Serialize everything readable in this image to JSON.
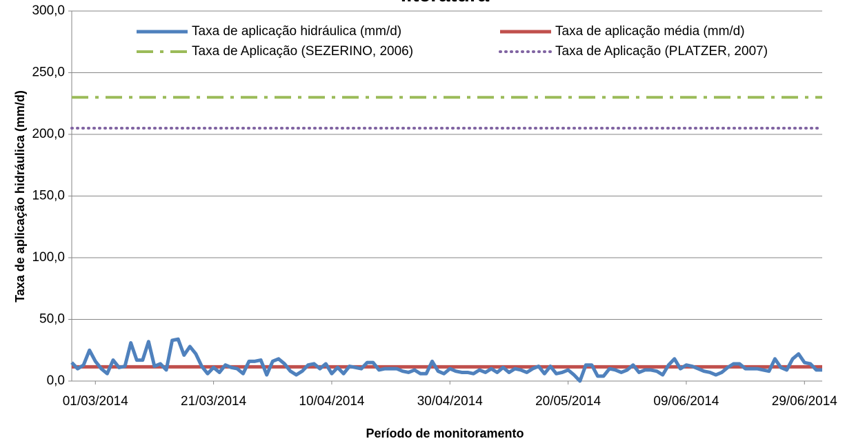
{
  "chart_data": {
    "type": "line",
    "title": "literatura",
    "xlabel": "Período de monitoramento",
    "ylabel": "Taxa de aplicação hidráulica (mm/d)",
    "xlim": [
      "25/02/2014",
      "02/07/2014"
    ],
    "xticks": [
      "01/03/2014",
      "21/03/2014",
      "10/04/2014",
      "30/04/2014",
      "20/05/2014",
      "09/06/2014",
      "29/06/2014"
    ],
    "ylim": [
      0,
      300
    ],
    "yticks": [
      {
        "value": 0,
        "label": "0,0"
      },
      {
        "value": 50,
        "label": "50,0"
      },
      {
        "value": 100,
        "label": "100,0"
      },
      {
        "value": 150,
        "label": "150,0"
      },
      {
        "value": 200,
        "label": "200,0"
      },
      {
        "value": 250,
        "label": "250,0"
      },
      {
        "value": 300,
        "label": "300,0"
      }
    ],
    "grid": true,
    "legend": "top",
    "series": [
      {
        "name": "Taxa de aplicação hidráulica (mm/d)",
        "color": "#4f81bd",
        "style": "solid",
        "x": [
          "25/02/2014",
          "26/02/2014",
          "27/02/2014",
          "28/02/2014",
          "01/03/2014",
          "02/03/2014",
          "03/03/2014",
          "04/03/2014",
          "05/03/2014",
          "06/03/2014",
          "07/03/2014",
          "08/03/2014",
          "09/03/2014",
          "10/03/2014",
          "11/03/2014",
          "12/03/2014",
          "13/03/2014",
          "14/03/2014",
          "15/03/2014",
          "16/03/2014",
          "17/03/2014",
          "18/03/2014",
          "19/03/2014",
          "20/03/2014",
          "21/03/2014",
          "22/03/2014",
          "23/03/2014",
          "24/03/2014",
          "25/03/2014",
          "26/03/2014",
          "27/03/2014",
          "28/03/2014",
          "29/03/2014",
          "30/03/2014",
          "31/03/2014",
          "01/04/2014",
          "02/04/2014",
          "03/04/2014",
          "04/04/2014",
          "05/04/2014",
          "06/04/2014",
          "07/04/2014",
          "08/04/2014",
          "09/04/2014",
          "10/04/2014",
          "11/04/2014",
          "12/04/2014",
          "13/04/2014",
          "14/04/2014",
          "15/04/2014",
          "16/04/2014",
          "17/04/2014",
          "18/04/2014",
          "19/04/2014",
          "20/04/2014",
          "21/04/2014",
          "22/04/2014",
          "23/04/2014",
          "24/04/2014",
          "25/04/2014",
          "26/04/2014",
          "27/04/2014",
          "28/04/2014",
          "29/04/2014",
          "30/04/2014",
          "01/05/2014",
          "02/05/2014",
          "03/05/2014",
          "04/05/2014",
          "05/05/2014",
          "06/05/2014",
          "07/05/2014",
          "08/05/2014",
          "09/05/2014",
          "10/05/2014",
          "11/05/2014",
          "12/05/2014",
          "13/05/2014",
          "14/05/2014",
          "15/05/2014",
          "16/05/2014",
          "17/05/2014",
          "18/05/2014",
          "19/05/2014",
          "20/05/2014",
          "21/05/2014",
          "22/05/2014",
          "23/05/2014",
          "24/05/2014",
          "25/05/2014",
          "26/05/2014",
          "27/05/2014",
          "28/05/2014",
          "29/05/2014",
          "30/05/2014",
          "31/05/2014",
          "01/06/2014",
          "02/06/2014",
          "03/06/2014",
          "04/06/2014",
          "05/06/2014",
          "06/06/2014",
          "07/06/2014",
          "08/06/2014",
          "09/06/2014",
          "10/06/2014",
          "11/06/2014",
          "12/06/2014",
          "13/06/2014",
          "14/06/2014",
          "15/06/2014",
          "16/06/2014",
          "17/06/2014",
          "18/06/2014",
          "19/06/2014",
          "20/06/2014",
          "21/06/2014",
          "22/06/2014",
          "23/06/2014",
          "24/06/2014",
          "25/06/2014",
          "26/06/2014",
          "27/06/2014",
          "28/06/2014",
          "29/06/2014",
          "30/06/2014",
          "01/07/2014",
          "02/07/2014"
        ],
        "values": [
          15,
          10,
          13,
          25,
          16,
          10,
          6,
          17,
          11,
          12,
          31,
          17,
          17,
          32,
          12,
          14,
          9,
          33,
          34,
          21,
          28,
          22,
          12,
          6,
          11,
          7,
          13,
          11,
          10,
          6,
          16,
          16,
          17,
          5,
          16,
          18,
          14,
          8,
          5,
          8,
          13,
          14,
          10,
          14,
          6,
          11,
          6,
          12,
          11,
          10,
          15,
          15,
          9,
          10,
          10,
          10,
          8,
          7,
          9,
          6,
          6,
          16,
          8,
          6,
          10,
          8,
          7,
          7,
          6,
          9,
          7,
          10,
          7,
          11,
          7,
          10,
          9,
          7,
          10,
          12,
          6,
          12,
          6,
          7,
          9,
          5,
          0,
          13,
          13,
          4,
          4,
          10,
          9,
          7,
          9,
          13,
          7,
          9,
          9,
          8,
          5,
          13,
          18,
          10,
          13,
          12,
          10,
          8,
          7,
          5,
          7,
          11,
          14,
          14,
          10,
          10,
          10,
          9,
          8,
          18,
          11,
          9,
          18,
          22,
          15,
          14,
          9,
          9
        ]
      },
      {
        "name": "Taxa de aplicação média (mm/d)",
        "color": "#c0504d",
        "style": "solid",
        "x": [
          "25/02/2014",
          "02/07/2014"
        ],
        "values": [
          11.5,
          11.5
        ]
      },
      {
        "name": "Taxa de Aplicação (SEZERINO, 2006)",
        "color": "#9bbb59",
        "style": "dashdot",
        "x": [
          "25/02/2014",
          "02/07/2014"
        ],
        "values": [
          230,
          230
        ]
      },
      {
        "name": "Taxa de Aplicação (PLATZER, 2007)",
        "color": "#8064a2",
        "style": "dot",
        "x": [
          "25/02/2014",
          "02/07/2014"
        ],
        "values": [
          205,
          205
        ]
      }
    ]
  }
}
